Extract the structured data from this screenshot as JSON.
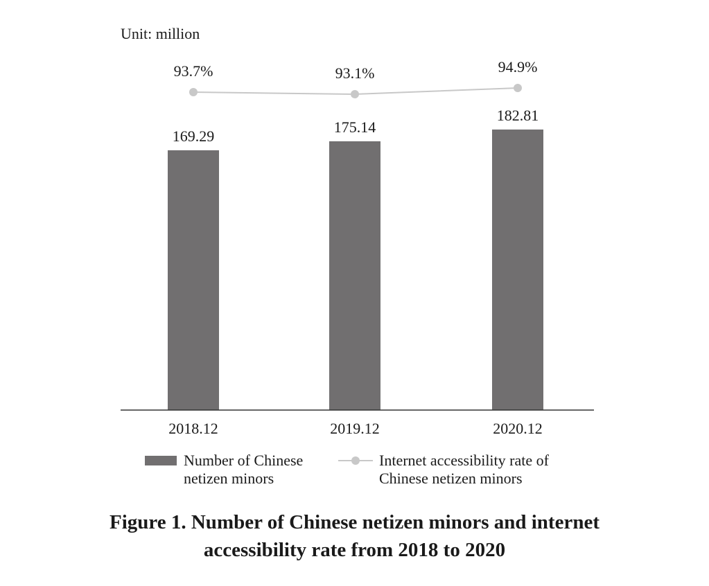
{
  "chart_data": {
    "type": "bar",
    "unit_label": "Unit: million",
    "categories": [
      "2018.12",
      "2019.12",
      "2020.12"
    ],
    "series": [
      {
        "name": "Number of Chinese netizen minors",
        "kind": "bar",
        "values": [
          169.29,
          175.14,
          182.81
        ],
        "labels": [
          "169.29",
          "175.14",
          "182.81"
        ],
        "color": "#716f70"
      },
      {
        "name": "Internet accessibility rate of Chinese netizen minors",
        "kind": "line",
        "values": [
          93.7,
          93.1,
          94.9
        ],
        "labels": [
          "93.7%",
          "93.1%",
          "94.9%"
        ],
        "color": "#c8c8c8"
      }
    ],
    "legend": {
      "placement": "bottom",
      "bar_lines": [
        "Number of Chinese",
        "netizen minors"
      ],
      "line_lines": [
        "Internet accessibility rate of",
        "Chinese netizen minors"
      ]
    },
    "caption_lines": [
      "Figure 1. Number of Chinese netizen minors and internet",
      "accessibility rate from 2018 to 2020"
    ],
    "ylim": [
      0,
      182.81
    ],
    "grid": false
  }
}
